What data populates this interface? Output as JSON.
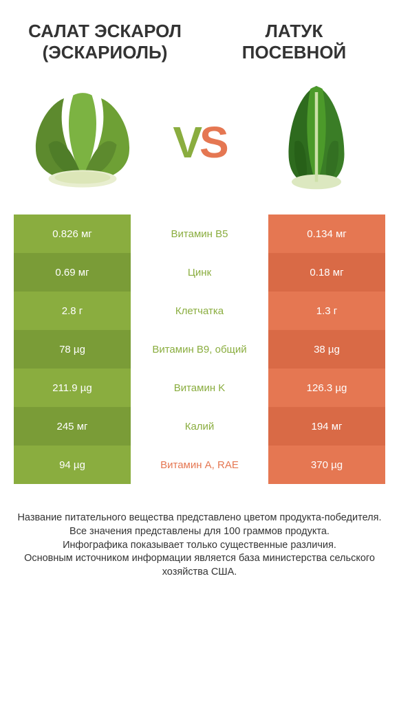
{
  "colors": {
    "green": "#8aad3f",
    "green_dark": "#7a9c37",
    "orange": "#e57752",
    "orange_dark": "#d96a46",
    "white_row": "#ffffff",
    "title_text": "#333333"
  },
  "left_product": {
    "title": "САЛАТ ЭСКАРОЛ (ЭСКАРИОЛЬ)"
  },
  "right_product": {
    "title": "ЛАТУК ПОСЕВНОЙ"
  },
  "vs_label": {
    "v": "V",
    "s": "S"
  },
  "rows": [
    {
      "left": "0.826 мг",
      "mid": "Витамин B5",
      "right": "0.134 мг",
      "winner": "left"
    },
    {
      "left": "0.69 мг",
      "mid": "Цинк",
      "right": "0.18 мг",
      "winner": "left"
    },
    {
      "left": "2.8 г",
      "mid": "Клетчатка",
      "right": "1.3 г",
      "winner": "left"
    },
    {
      "left": "78 µg",
      "mid": "Витамин B9, общий",
      "right": "38 µg",
      "winner": "left"
    },
    {
      "left": "211.9 µg",
      "mid": "Витамин K",
      "right": "126.3 µg",
      "winner": "left"
    },
    {
      "left": "245 мг",
      "mid": "Калий",
      "right": "194 мг",
      "winner": "left"
    },
    {
      "left": "94 µg",
      "mid": "Витамин A, RAE",
      "right": "370 µg",
      "winner": "right"
    }
  ],
  "footer_lines": [
    "Название питательного вещества представлено цветом продукта-победителя.",
    "Все значения представлены для 100 граммов продукта.",
    "Инфографика показывает только существенные различия.",
    "Основным источником информации является база министерства сельского хозяйства США."
  ]
}
